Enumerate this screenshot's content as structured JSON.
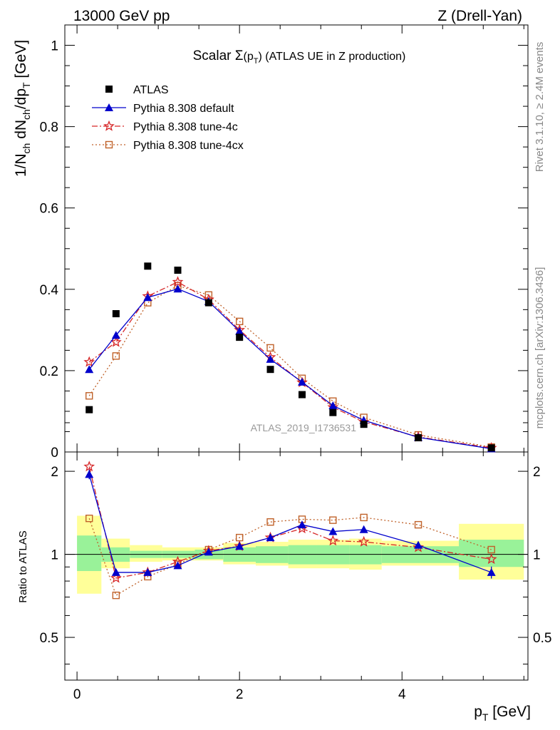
{
  "header": {
    "left": "13000 GeV pp",
    "right": "Z (Drell-Yan)"
  },
  "side_labels": {
    "rivet": "Rivet 3.1.10, ≥ 2.4M events",
    "mcplots": "mcplots.cern.ch [arXiv:1306.3436]"
  },
  "colors": {
    "data": "#000000",
    "default": "#0000cc",
    "tune4c": "#d62728",
    "tune4cx": "#c0622a",
    "band_inner": "#99f299",
    "band_outer": "#ffff99"
  },
  "chart_data": {
    "type": "scatter",
    "title": "Scalar Σ(p_T) (ATLAS UE in Z production)",
    "title_parts": {
      "pre": "Scalar ",
      "sigma": "Σ",
      "open": "(p",
      "sub": "T",
      "close": ")",
      "post": " (ATLAS UE in Z production)"
    },
    "analysis_label": "ATLAS_2019_I1736531",
    "main_ylabel": "1/N_ch dN_ch/dp_T [GeV]",
    "main_ylabel_parts": {
      "a": "1/N",
      "a_sub": "ch",
      "b": " dN",
      "b_sub": "ch",
      "c": "/dp",
      "c_sub": "T",
      "d": " [GeV]"
    },
    "ratio_ylabel": "Ratio to ATLAS",
    "xlabel": "p_T [GeV]",
    "xlabel_parts": {
      "main": "p",
      "sub": "T",
      "unit": " [GeV]"
    },
    "xlim": [
      -0.15,
      5.55
    ],
    "main_ylim": [
      0,
      1.05
    ],
    "ratio_ylim": [
      0.35,
      2.35
    ],
    "ratio_log": true,
    "x_ticks": [
      "0",
      "2",
      "4"
    ],
    "main_y_ticks": [
      "0",
      "0.2",
      "0.4",
      "0.6",
      "0.8",
      "1"
    ],
    "ratio_y_ticks": [
      "0.5",
      "1",
      "2"
    ],
    "legend_position": "top-left",
    "x": [
      0.15,
      0.48,
      0.87,
      1.24,
      1.62,
      2.0,
      2.38,
      2.77,
      3.15,
      3.53,
      4.2,
      5.1
    ],
    "bins": [
      [
        0.0,
        0.3
      ],
      [
        0.3,
        0.65
      ],
      [
        0.65,
        1.05
      ],
      [
        1.05,
        1.45
      ],
      [
        1.45,
        1.8
      ],
      [
        1.8,
        2.2
      ],
      [
        2.2,
        2.6
      ],
      [
        2.6,
        2.95
      ],
      [
        2.95,
        3.35
      ],
      [
        3.35,
        3.75
      ],
      [
        3.75,
        4.7
      ],
      [
        4.7,
        5.5
      ]
    ],
    "band_inner": [
      [
        0.87,
        1.17
      ],
      [
        0.94,
        1.06
      ],
      [
        0.97,
        1.03
      ],
      [
        0.97,
        1.03
      ],
      [
        0.96,
        1.04
      ],
      [
        0.94,
        1.06
      ],
      [
        0.93,
        1.07
      ],
      [
        0.92,
        1.08
      ],
      [
        0.92,
        1.08
      ],
      [
        0.92,
        1.08
      ],
      [
        0.93,
        1.07
      ],
      [
        0.9,
        1.13
      ]
    ],
    "band_outer": [
      [
        0.72,
        1.38
      ],
      [
        0.89,
        1.14
      ],
      [
        0.94,
        1.08
      ],
      [
        0.95,
        1.06
      ],
      [
        0.95,
        1.06
      ],
      [
        0.92,
        1.1
      ],
      [
        0.91,
        1.11
      ],
      [
        0.89,
        1.13
      ],
      [
        0.89,
        1.13
      ],
      [
        0.88,
        1.14
      ],
      [
        0.91,
        1.12
      ],
      [
        0.81,
        1.29
      ]
    ],
    "series": [
      {
        "name": "ATLAS",
        "key": "data",
        "marker": "square-filled",
        "values": [
          0.104,
          0.34,
          0.457,
          0.447,
          0.367,
          0.282,
          0.203,
          0.141,
          0.097,
          0.068,
          0.035,
          0.01
        ]
      },
      {
        "name": "Pythia 8.308 default",
        "key": "default",
        "marker": "triangle-filled",
        "dash": "",
        "values": [
          0.203,
          0.287,
          0.38,
          0.401,
          0.37,
          0.297,
          0.228,
          0.172,
          0.114,
          0.078,
          0.036,
          0.008
        ],
        "ratio": [
          1.95,
          0.86,
          0.86,
          0.91,
          1.02,
          1.07,
          1.15,
          1.28,
          1.21,
          1.23,
          1.08,
          0.86
        ]
      },
      {
        "name": "Pythia 8.308 tune-4c",
        "key": "tune4c",
        "marker": "star-open",
        "dash": "8,3,2,3",
        "values": [
          0.221,
          0.27,
          0.383,
          0.418,
          0.375,
          0.3,
          0.233,
          0.171,
          0.11,
          0.074,
          0.037,
          0.01
        ],
        "ratio": [
          2.08,
          0.82,
          0.86,
          0.94,
          1.03,
          1.07,
          1.15,
          1.24,
          1.12,
          1.11,
          1.06,
          0.96
        ]
      },
      {
        "name": "Pythia 8.308 tune-4cx",
        "key": "tune4cx",
        "marker": "square-open",
        "dash": "2,3",
        "values": [
          0.138,
          0.236,
          0.367,
          0.409,
          0.386,
          0.321,
          0.256,
          0.181,
          0.125,
          0.085,
          0.042,
          0.012
        ],
        "ratio": [
          1.35,
          0.71,
          0.83,
          0.92,
          1.04,
          1.15,
          1.31,
          1.34,
          1.33,
          1.36,
          1.28,
          1.04
        ]
      }
    ]
  }
}
